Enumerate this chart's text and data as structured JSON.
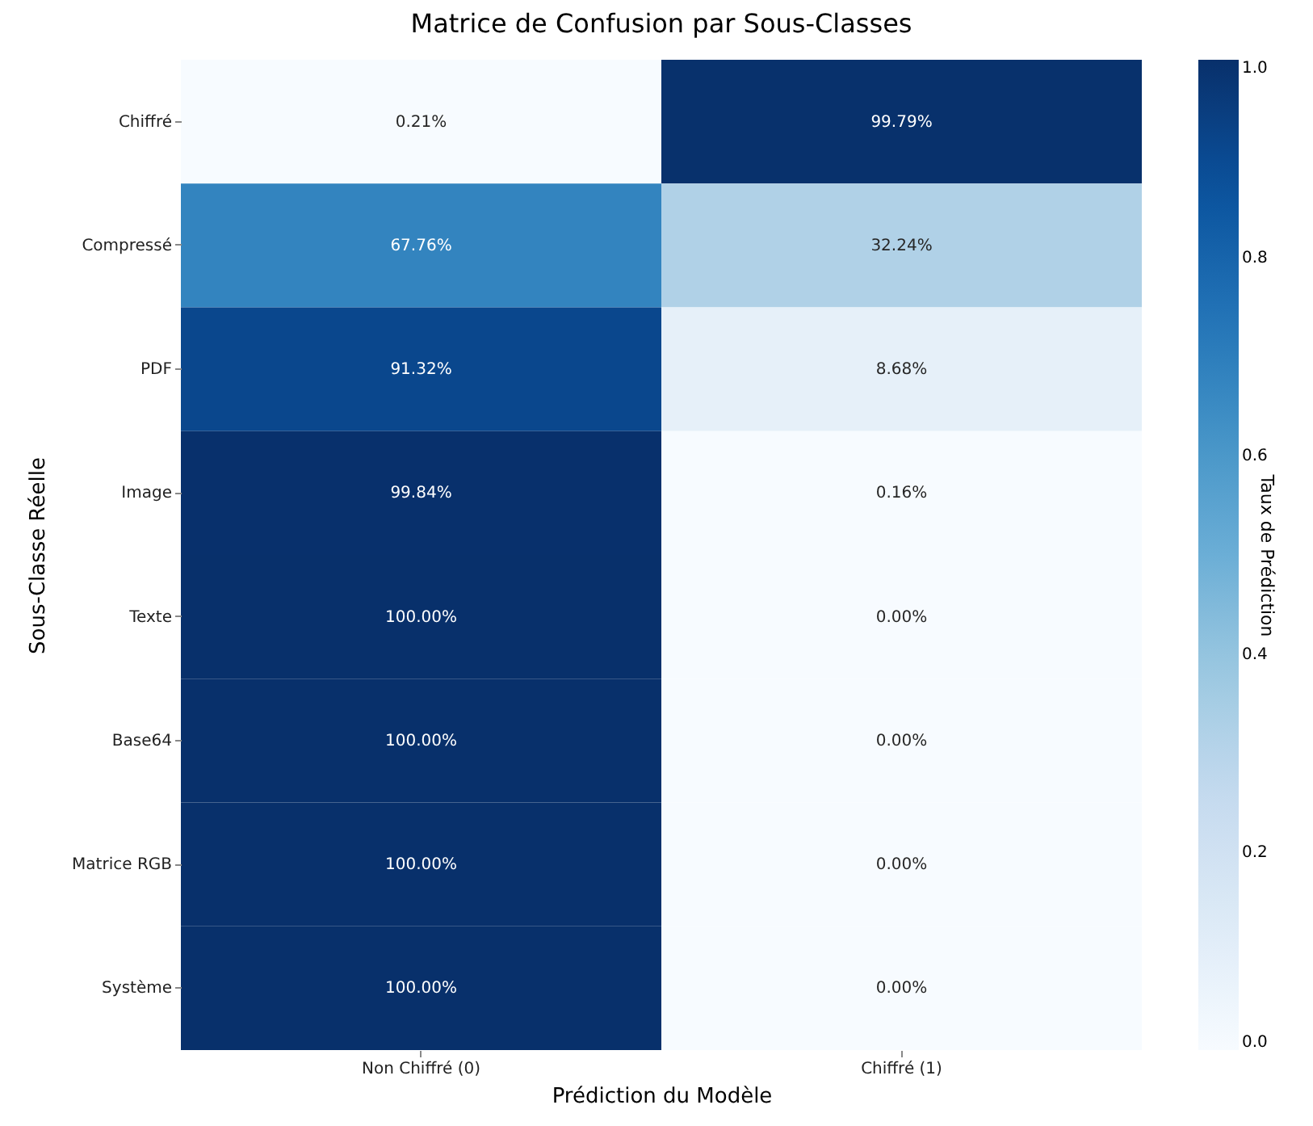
{
  "chart_data": {
    "type": "heatmap",
    "title": "Matrice de Confusion par Sous-Classes",
    "xlabel": "Prédiction du Modèle",
    "ylabel": "Sous-Classe Réelle",
    "clabel": "Taux de Prédiction",
    "categories": [
      "Non Chiffré (0)",
      "Chiffré (1)"
    ],
    "y_categories": [
      "Chiffré",
      "Compressé",
      "PDF",
      "Image",
      "Texte",
      "Base64",
      "Matrice RGB",
      "Système"
    ],
    "cells": [
      [
        0.0021,
        0.9979
      ],
      [
        0.6776,
        0.3224
      ],
      [
        0.9132,
        0.0868
      ],
      [
        0.9984,
        0.0016
      ],
      [
        1.0,
        0.0
      ],
      [
        1.0,
        0.0
      ],
      [
        1.0,
        0.0
      ],
      [
        1.0,
        0.0
      ]
    ],
    "cell_labels": [
      [
        "0.21%",
        "99.79%"
      ],
      [
        "67.76%",
        "32.24%"
      ],
      [
        "91.32%",
        "8.68%"
      ],
      [
        "99.84%",
        "0.16%"
      ],
      [
        "100.00%",
        "0.00%"
      ],
      [
        "100.00%",
        "0.00%"
      ],
      [
        "100.00%",
        "0.00%"
      ],
      [
        "100.00%",
        "0.00%"
      ]
    ],
    "clim": [
      0,
      1
    ],
    "cticks": [
      {
        "value": 0,
        "label": "0.0"
      },
      {
        "value": 0.2,
        "label": "0.2"
      },
      {
        "value": 0.4,
        "label": "0.4"
      },
      {
        "value": 0.6,
        "label": "0.6"
      },
      {
        "value": 0.8,
        "label": "0.8"
      },
      {
        "value": 1,
        "label": "1.0"
      }
    ]
  }
}
